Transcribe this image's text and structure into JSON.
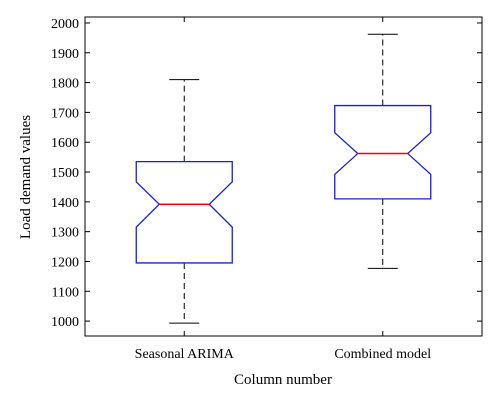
{
  "chart_data": {
    "type": "boxplot",
    "title": "",
    "xlabel": "Column number",
    "ylabel": "Load demand values",
    "ylim": [
      950,
      2020
    ],
    "yticks": [
      1000,
      1100,
      1200,
      1300,
      1400,
      1500,
      1600,
      1700,
      1800,
      1900,
      2000
    ],
    "notched": true,
    "grid": false,
    "categories": [
      "Seasonal ARIMA",
      "Combined model"
    ],
    "boxes": [
      {
        "name": "Seasonal ARIMA",
        "whisker_low": 993,
        "q1": 1195,
        "median": 1392,
        "q3": 1535,
        "whisker_high": 1810,
        "notch_low": 1315,
        "notch_high": 1467
      },
      {
        "name": "Combined model",
        "whisker_low": 1177,
        "q1": 1410,
        "median": 1562,
        "q3": 1723,
        "whisker_high": 1962,
        "notch_low": 1492,
        "notch_high": 1632
      }
    ],
    "colors": {
      "box": "#1f1fd0",
      "median": "#ff0000",
      "whisker": "#000000",
      "axes": "#000000"
    }
  }
}
